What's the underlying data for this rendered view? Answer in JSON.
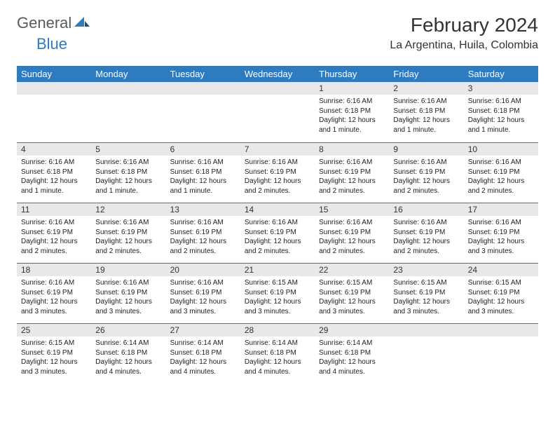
{
  "logo": {
    "general": "General",
    "blue": "Blue"
  },
  "title": "February 2024",
  "location": "La Argentina, Huila, Colombia",
  "colors": {
    "header_bg": "#2f7bbf",
    "header_text": "#ffffff",
    "daynum_bg": "#e8e8e8",
    "body_text": "#222222",
    "cell_border": "#2f7bbf"
  },
  "weekdays": [
    "Sunday",
    "Monday",
    "Tuesday",
    "Wednesday",
    "Thursday",
    "Friday",
    "Saturday"
  ],
  "weeks": [
    [
      null,
      null,
      null,
      null,
      {
        "n": "1",
        "sunrise": "6:16 AM",
        "sunset": "6:18 PM",
        "daylight": "12 hours and 1 minute."
      },
      {
        "n": "2",
        "sunrise": "6:16 AM",
        "sunset": "6:18 PM",
        "daylight": "12 hours and 1 minute."
      },
      {
        "n": "3",
        "sunrise": "6:16 AM",
        "sunset": "6:18 PM",
        "daylight": "12 hours and 1 minute."
      }
    ],
    [
      {
        "n": "4",
        "sunrise": "6:16 AM",
        "sunset": "6:18 PM",
        "daylight": "12 hours and 1 minute."
      },
      {
        "n": "5",
        "sunrise": "6:16 AM",
        "sunset": "6:18 PM",
        "daylight": "12 hours and 1 minute."
      },
      {
        "n": "6",
        "sunrise": "6:16 AM",
        "sunset": "6:18 PM",
        "daylight": "12 hours and 1 minute."
      },
      {
        "n": "7",
        "sunrise": "6:16 AM",
        "sunset": "6:19 PM",
        "daylight": "12 hours and 2 minutes."
      },
      {
        "n": "8",
        "sunrise": "6:16 AM",
        "sunset": "6:19 PM",
        "daylight": "12 hours and 2 minutes."
      },
      {
        "n": "9",
        "sunrise": "6:16 AM",
        "sunset": "6:19 PM",
        "daylight": "12 hours and 2 minutes."
      },
      {
        "n": "10",
        "sunrise": "6:16 AM",
        "sunset": "6:19 PM",
        "daylight": "12 hours and 2 minutes."
      }
    ],
    [
      {
        "n": "11",
        "sunrise": "6:16 AM",
        "sunset": "6:19 PM",
        "daylight": "12 hours and 2 minutes."
      },
      {
        "n": "12",
        "sunrise": "6:16 AM",
        "sunset": "6:19 PM",
        "daylight": "12 hours and 2 minutes."
      },
      {
        "n": "13",
        "sunrise": "6:16 AM",
        "sunset": "6:19 PM",
        "daylight": "12 hours and 2 minutes."
      },
      {
        "n": "14",
        "sunrise": "6:16 AM",
        "sunset": "6:19 PM",
        "daylight": "12 hours and 2 minutes."
      },
      {
        "n": "15",
        "sunrise": "6:16 AM",
        "sunset": "6:19 PM",
        "daylight": "12 hours and 2 minutes."
      },
      {
        "n": "16",
        "sunrise": "6:16 AM",
        "sunset": "6:19 PM",
        "daylight": "12 hours and 2 minutes."
      },
      {
        "n": "17",
        "sunrise": "6:16 AM",
        "sunset": "6:19 PM",
        "daylight": "12 hours and 3 minutes."
      }
    ],
    [
      {
        "n": "18",
        "sunrise": "6:16 AM",
        "sunset": "6:19 PM",
        "daylight": "12 hours and 3 minutes."
      },
      {
        "n": "19",
        "sunrise": "6:16 AM",
        "sunset": "6:19 PM",
        "daylight": "12 hours and 3 minutes."
      },
      {
        "n": "20",
        "sunrise": "6:16 AM",
        "sunset": "6:19 PM",
        "daylight": "12 hours and 3 minutes."
      },
      {
        "n": "21",
        "sunrise": "6:15 AM",
        "sunset": "6:19 PM",
        "daylight": "12 hours and 3 minutes."
      },
      {
        "n": "22",
        "sunrise": "6:15 AM",
        "sunset": "6:19 PM",
        "daylight": "12 hours and 3 minutes."
      },
      {
        "n": "23",
        "sunrise": "6:15 AM",
        "sunset": "6:19 PM",
        "daylight": "12 hours and 3 minutes."
      },
      {
        "n": "24",
        "sunrise": "6:15 AM",
        "sunset": "6:19 PM",
        "daylight": "12 hours and 3 minutes."
      }
    ],
    [
      {
        "n": "25",
        "sunrise": "6:15 AM",
        "sunset": "6:19 PM",
        "daylight": "12 hours and 3 minutes."
      },
      {
        "n": "26",
        "sunrise": "6:14 AM",
        "sunset": "6:18 PM",
        "daylight": "12 hours and 4 minutes."
      },
      {
        "n": "27",
        "sunrise": "6:14 AM",
        "sunset": "6:18 PM",
        "daylight": "12 hours and 4 minutes."
      },
      {
        "n": "28",
        "sunrise": "6:14 AM",
        "sunset": "6:18 PM",
        "daylight": "12 hours and 4 minutes."
      },
      {
        "n": "29",
        "sunrise": "6:14 AM",
        "sunset": "6:18 PM",
        "daylight": "12 hours and 4 minutes."
      },
      null,
      null
    ]
  ],
  "labels": {
    "sunrise_prefix": "Sunrise: ",
    "sunset_prefix": "Sunset: ",
    "daylight_prefix": "Daylight: "
  }
}
